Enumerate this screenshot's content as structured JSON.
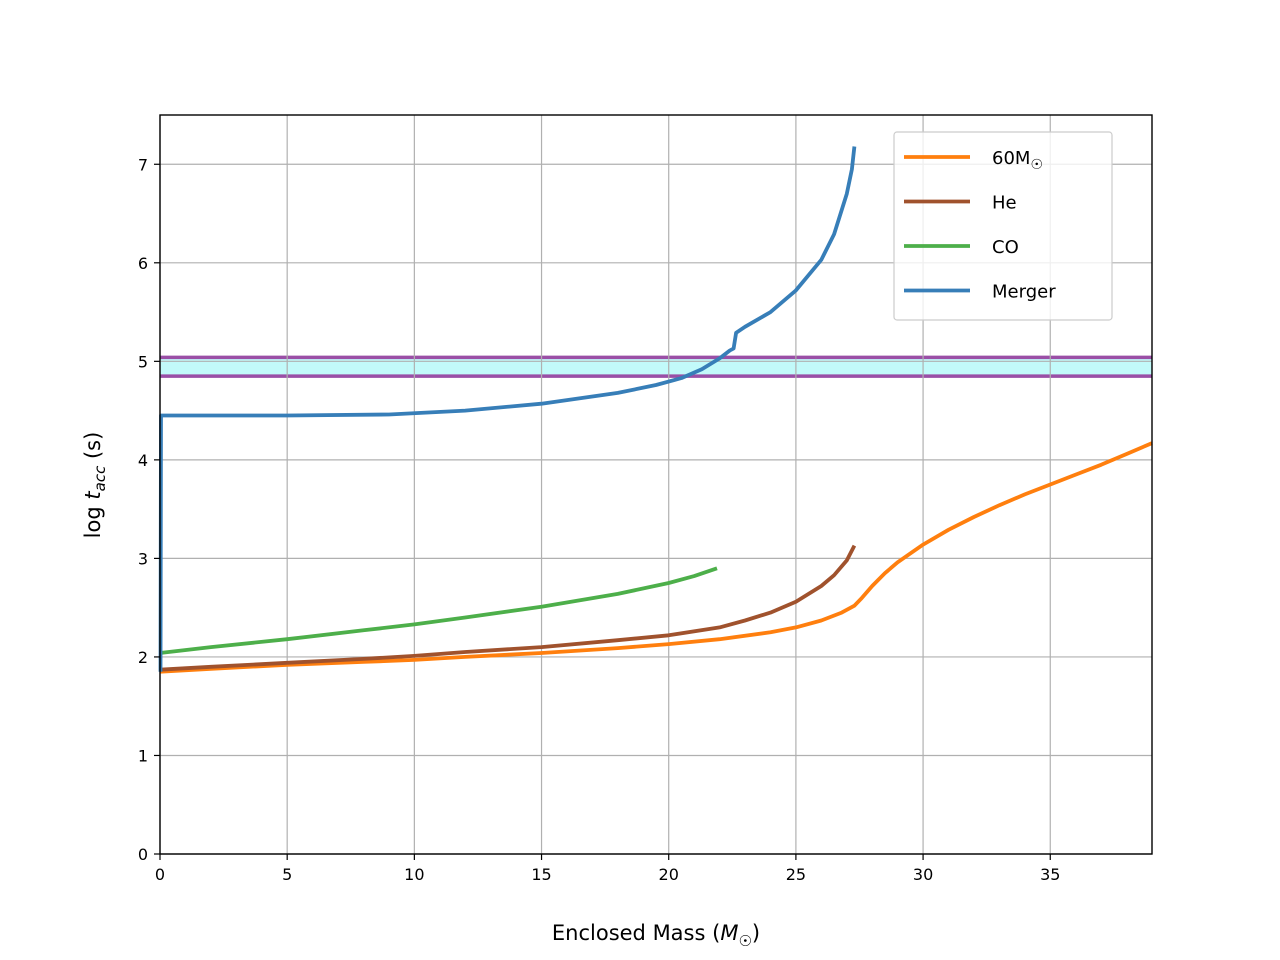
{
  "chart_data": {
    "type": "line",
    "title": "",
    "xlabel": "Enclosed Mass (M☉)",
    "ylabel": "log t_acc (s)",
    "xlim": [
      0,
      39
    ],
    "ylim": [
      0,
      7.5
    ],
    "grid": true,
    "legend_position": "top-right",
    "x_ticks": [
      0,
      5,
      10,
      15,
      20,
      25,
      30,
      35
    ],
    "y_ticks": [
      0,
      1,
      2,
      3,
      4,
      5,
      6,
      7
    ],
    "band": {
      "y_low": 4.85,
      "y_high": 5.04,
      "fill_color": "#c2fafa",
      "edge_color": "#9a4fa6"
    },
    "series": [
      {
        "name": "60M☉",
        "label_main": "60M",
        "label_sub": "☉",
        "color": "#ff7f0e",
        "x": [
          0,
          2,
          5,
          8,
          10,
          12,
          15,
          18,
          20,
          22,
          24,
          25,
          26,
          26.8,
          27.3,
          27.6,
          28,
          28.5,
          29,
          30,
          31,
          32,
          33,
          34,
          35,
          36,
          37,
          38,
          39
        ],
        "y": [
          1.85,
          1.88,
          1.92,
          1.95,
          1.97,
          2.0,
          2.04,
          2.09,
          2.13,
          2.18,
          2.25,
          2.3,
          2.37,
          2.45,
          2.52,
          2.6,
          2.72,
          2.85,
          2.96,
          3.14,
          3.29,
          3.42,
          3.54,
          3.65,
          3.75,
          3.85,
          3.95,
          4.06,
          4.17
        ]
      },
      {
        "name": "He",
        "label_main": "He",
        "label_sub": "",
        "color": "#a0522d",
        "x": [
          0,
          2,
          5,
          8,
          10,
          12,
          15,
          18,
          20,
          22,
          23,
          24,
          25,
          26,
          26.5,
          27,
          27.3
        ],
        "y": [
          1.87,
          1.9,
          1.94,
          1.98,
          2.01,
          2.05,
          2.1,
          2.17,
          2.22,
          2.3,
          2.37,
          2.45,
          2.56,
          2.72,
          2.83,
          2.98,
          3.13
        ]
      },
      {
        "name": "CO",
        "label_main": "CO",
        "label_sub": "",
        "color": "#4daf4a",
        "x": [
          0,
          2,
          5,
          8,
          10,
          12,
          15,
          18,
          20,
          21,
          21.9
        ],
        "y": [
          2.04,
          2.1,
          2.18,
          2.27,
          2.33,
          2.4,
          2.51,
          2.64,
          2.75,
          2.82,
          2.9
        ]
      },
      {
        "name": "Merger",
        "label_main": "Merger",
        "label_sub": "",
        "color": "#377eb8",
        "x": [
          0.02,
          0.04,
          1,
          5,
          9,
          12,
          15,
          18,
          19.5,
          20.5,
          21.3,
          22,
          22.4,
          22.55,
          22.65,
          23,
          24,
          25,
          26,
          26.5,
          27,
          27.2,
          27.3
        ],
        "y": [
          1.85,
          4.45,
          4.45,
          4.45,
          4.46,
          4.5,
          4.57,
          4.68,
          4.76,
          4.83,
          4.92,
          5.03,
          5.11,
          5.13,
          5.29,
          5.35,
          5.5,
          5.72,
          6.03,
          6.29,
          6.7,
          6.95,
          7.18
        ]
      }
    ]
  }
}
